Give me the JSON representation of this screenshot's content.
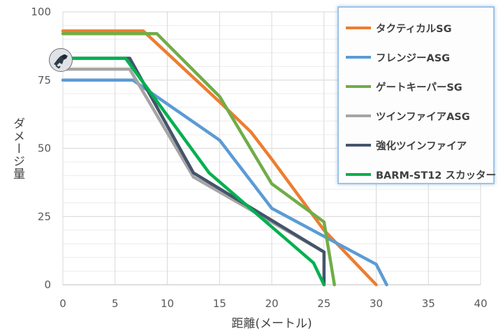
{
  "chart_data": {
    "type": "line",
    "xlabel": "距離(メートル)",
    "ylabel": "ダメージ量",
    "xlim": [
      0,
      40
    ],
    "ylim": [
      0,
      100
    ],
    "x_ticks": [
      "0",
      "5",
      "10",
      "15",
      "20",
      "25",
      "30",
      "35",
      "40"
    ],
    "y_ticks": [
      "0",
      "25",
      "50",
      "75",
      "100"
    ],
    "grid": true,
    "legend_position": "top-right",
    "series": [
      {
        "name": "タクティカルSG",
        "color": "#ed7d31",
        "x": [
          0,
          7.7,
          15,
          18,
          20,
          25,
          30
        ],
        "y": [
          93,
          93,
          67,
          56,
          46,
          20,
          0
        ]
      },
      {
        "name": "フレンジーASG",
        "color": "#5b9bd5",
        "x": [
          0,
          6.7,
          15,
          20,
          30,
          31
        ],
        "y": [
          75,
          75,
          53,
          28,
          7.5,
          0
        ]
      },
      {
        "name": "ゲートキーパーSG",
        "color": "#70ad47",
        "x": [
          0,
          9,
          15,
          20,
          25,
          26
        ],
        "y": [
          92,
          92,
          69,
          37,
          23,
          0
        ]
      },
      {
        "name": "ツインファイアASG",
        "color": "#a5a5a5",
        "x": [
          0,
          6.4,
          12.5,
          25
        ],
        "y": [
          79,
          79,
          39.5,
          12
        ]
      },
      {
        "name": "強化ツインファイア",
        "color": "#44546a",
        "x": [
          0,
          6.4,
          12.5,
          25,
          25
        ],
        "y": [
          83,
          83,
          41,
          12,
          0
        ]
      },
      {
        "name": "BARM-ST12 スカッター",
        "color": "#00b050",
        "x": [
          0,
          6,
          14,
          24,
          25
        ],
        "y": [
          83,
          83,
          41,
          8,
          0
        ]
      }
    ]
  }
}
